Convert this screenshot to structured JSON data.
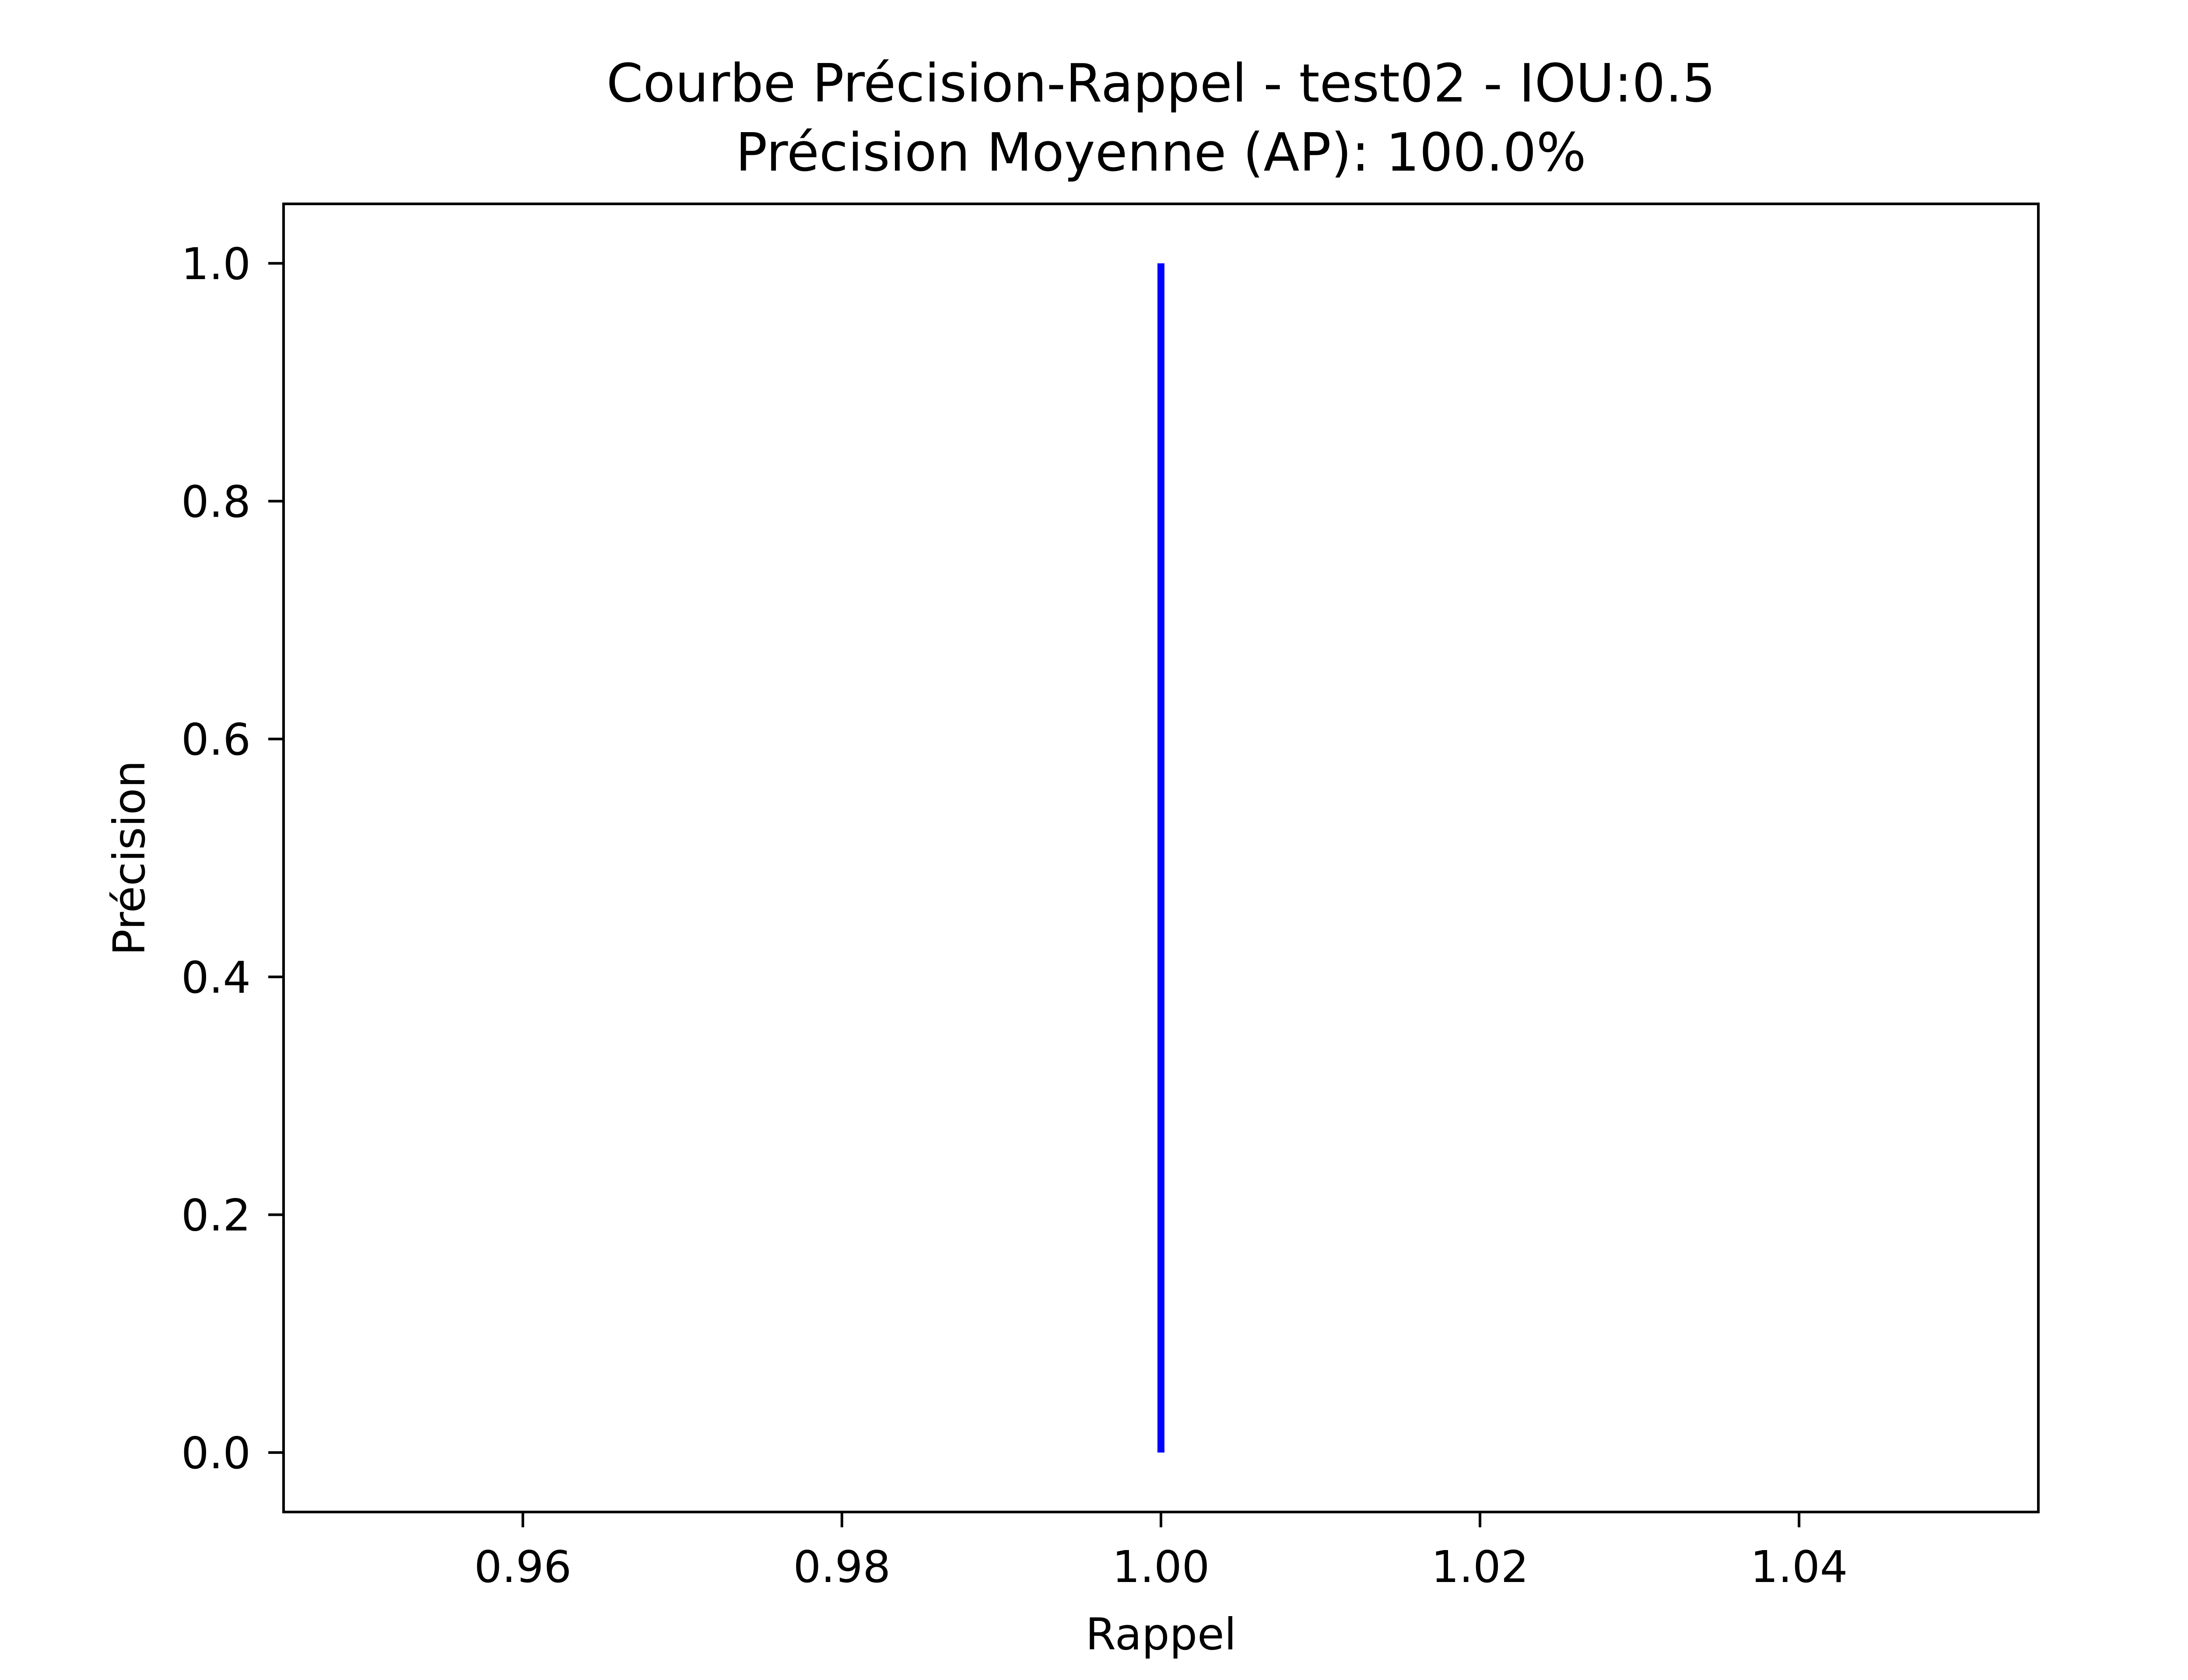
{
  "chart_data": {
    "type": "line",
    "title": "Courbe Précision-Rappel - test02 - IOU:0.5",
    "subtitle": "Précision Moyenne (AP): 100.0%",
    "xlabel": "Rappel",
    "ylabel": "Précision",
    "xlim": [
      0.945,
      1.055
    ],
    "ylim": [
      -0.05,
      1.05
    ],
    "xticks": [
      0.96,
      0.98,
      1.0,
      1.02,
      1.04
    ],
    "xtick_labels": [
      "0.96",
      "0.98",
      "1.00",
      "1.02",
      "1.04"
    ],
    "yticks": [
      0.0,
      0.2,
      0.4,
      0.6,
      0.8,
      1.0
    ],
    "ytick_labels": [
      "0.0",
      "0.2",
      "0.4",
      "0.6",
      "0.8",
      "1.0"
    ],
    "grid": false,
    "series": [
      {
        "color": "#0000ff",
        "x": [
          1.0,
          1.0
        ],
        "y": [
          0.0,
          1.0
        ]
      }
    ]
  }
}
